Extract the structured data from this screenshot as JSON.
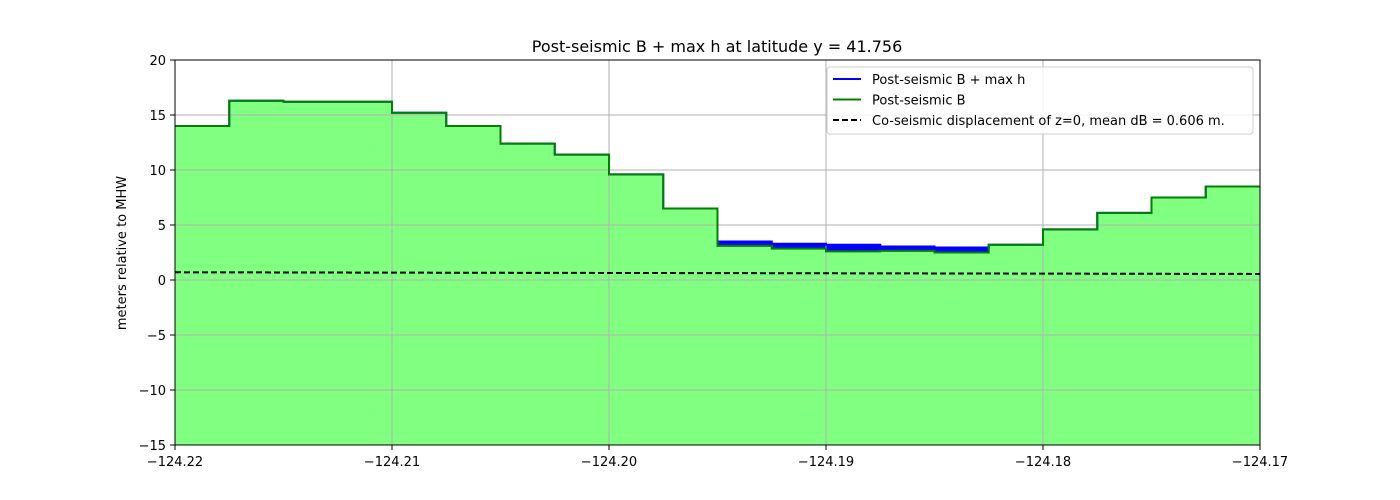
{
  "chart_data": {
    "type": "area",
    "title": "Post-seismic B + max h at latitude y = 41.756",
    "xlabel": "",
    "ylabel": "meters relative to MHW",
    "xlim": [
      -124.22,
      -124.17
    ],
    "ylim": [
      -15,
      20
    ],
    "x_ticks": [
      -124.22,
      -124.21,
      -124.2,
      -124.19,
      -124.18,
      -124.17
    ],
    "x_tick_labels": [
      "−124.22",
      "−124.21",
      "−124.20",
      "−124.19",
      "−124.18",
      "−124.17"
    ],
    "y_ticks": [
      -15,
      -10,
      -5,
      0,
      5,
      10,
      15,
      20
    ],
    "y_tick_labels": [
      "−15",
      "−10",
      "−5",
      "0",
      "5",
      "10",
      "15",
      "20"
    ],
    "grid": true,
    "legend_position": "top-right",
    "series": [
      {
        "name": "Post-seismic B + max h",
        "style": "step",
        "color": "#0000ff",
        "x": [
          -124.22,
          -124.2175,
          -124.215,
          -124.2125,
          -124.21,
          -124.2075,
          -124.205,
          -124.2025,
          -124.2,
          -124.1975,
          -124.195,
          -124.1925,
          -124.19,
          -124.1875,
          -124.185,
          -124.1825,
          -124.18,
          -124.1775,
          -124.175,
          -124.1725,
          -124.17
        ],
        "values": [
          14.0,
          16.3,
          16.2,
          16.2,
          15.2,
          14.0,
          12.4,
          11.4,
          9.6,
          6.5,
          3.5,
          3.3,
          3.2,
          3.05,
          2.95,
          3.2,
          4.6,
          6.1,
          7.5,
          8.5,
          8.5
        ]
      },
      {
        "name": "Post-seismic B",
        "style": "step",
        "color": "#008000",
        "x": [
          -124.22,
          -124.2175,
          -124.215,
          -124.2125,
          -124.21,
          -124.2075,
          -124.205,
          -124.2025,
          -124.2,
          -124.1975,
          -124.195,
          -124.1925,
          -124.19,
          -124.1875,
          -124.185,
          -124.1825,
          -124.18,
          -124.1775,
          -124.175,
          -124.1725,
          -124.17
        ],
        "values": [
          14.0,
          16.3,
          16.2,
          16.2,
          15.2,
          14.0,
          12.4,
          11.4,
          9.6,
          6.5,
          3.1,
          2.85,
          2.6,
          2.65,
          2.5,
          3.2,
          4.6,
          6.1,
          7.5,
          8.5,
          8.5
        ]
      },
      {
        "name": "Co-seismic displacement of z=0, mean dB = 0.606 m.",
        "style": "dashed",
        "color": "#000000",
        "x": [
          -124.22,
          -124.17
        ],
        "values": [
          0.7,
          0.55
        ]
      }
    ],
    "fill_color": "#80ff80",
    "fill_extra_color": "#0000ff"
  }
}
